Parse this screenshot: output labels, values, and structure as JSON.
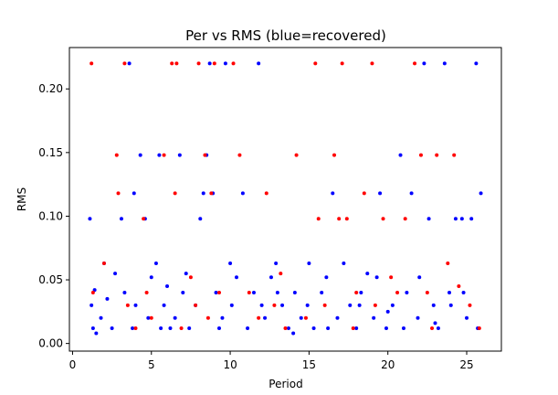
{
  "chart_data": {
    "type": "scatter",
    "title": "Per vs RMS (blue=recovered)",
    "xlabel": "Period",
    "ylabel": "RMS",
    "xlim": [
      -0.2,
      27.2
    ],
    "ylim": [
      -0.006,
      0.2325
    ],
    "xticks": [
      0,
      5,
      10,
      15,
      20,
      25
    ],
    "yticks": [
      0.0,
      0.05,
      0.1,
      0.15,
      0.2
    ],
    "ytick_labels": [
      "0.00",
      "0.05",
      "0.10",
      "0.15",
      "0.20"
    ],
    "grid": false,
    "legend": "none",
    "colors": {
      "recovered": "#0000ff",
      "not_recovered": "#ff0000",
      "axis": "#000000"
    },
    "series": [
      {
        "color": "#0000ff",
        "points": [
          [
            1.1,
            0.098
          ],
          [
            1.2,
            0.03
          ],
          [
            1.3,
            0.012
          ],
          [
            1.5,
            0.008
          ],
          [
            1.8,
            0.02
          ],
          [
            2.2,
            0.035
          ],
          [
            2.5,
            0.012
          ],
          [
            2.7,
            0.055
          ],
          [
            3.1,
            0.098
          ],
          [
            3.3,
            0.04
          ],
          [
            3.6,
            0.22
          ],
          [
            3.9,
            0.118
          ],
          [
            4.0,
            0.03
          ],
          [
            4.3,
            0.148
          ],
          [
            4.6,
            0.098
          ],
          [
            4.8,
            0.02
          ],
          [
            5.0,
            0.052
          ],
          [
            5.3,
            0.063
          ],
          [
            5.5,
            0.148
          ],
          [
            5.8,
            0.03
          ],
          [
            6.2,
            0.012
          ],
          [
            6.5,
            0.02
          ],
          [
            6.8,
            0.148
          ],
          [
            7.0,
            0.04
          ],
          [
            7.4,
            0.012
          ],
          [
            7.8,
            0.03
          ],
          [
            8.1,
            0.098
          ],
          [
            8.3,
            0.118
          ],
          [
            8.5,
            0.148
          ],
          [
            8.7,
            0.22
          ],
          [
            8.9,
            0.118
          ],
          [
            9.1,
            0.04
          ],
          [
            9.5,
            0.02
          ],
          [
            9.7,
            0.22
          ],
          [
            10.1,
            0.03
          ],
          [
            10.4,
            0.052
          ],
          [
            10.8,
            0.118
          ],
          [
            11.1,
            0.012
          ],
          [
            11.5,
            0.04
          ],
          [
            11.8,
            0.22
          ],
          [
            12.2,
            0.02
          ],
          [
            12.6,
            0.052
          ],
          [
            12.9,
            0.063
          ],
          [
            13.3,
            0.03
          ],
          [
            13.7,
            0.012
          ],
          [
            14.1,
            0.04
          ],
          [
            14.5,
            0.02
          ],
          [
            14.9,
            0.03
          ],
          [
            15.3,
            0.012
          ],
          [
            15.8,
            0.04
          ],
          [
            16.1,
            0.052
          ],
          [
            16.5,
            0.118
          ],
          [
            16.8,
            0.02
          ],
          [
            17.2,
            0.063
          ],
          [
            17.6,
            0.03
          ],
          [
            18.0,
            0.012
          ],
          [
            18.3,
            0.04
          ],
          [
            18.7,
            0.055
          ],
          [
            19.1,
            0.02
          ],
          [
            19.5,
            0.118
          ],
          [
            19.9,
            0.012
          ],
          [
            20.3,
            0.03
          ],
          [
            20.8,
            0.148
          ],
          [
            21.2,
            0.04
          ],
          [
            21.5,
            0.118
          ],
          [
            21.9,
            0.02
          ],
          [
            22.3,
            0.22
          ],
          [
            22.6,
            0.098
          ],
          [
            22.9,
            0.03
          ],
          [
            23.2,
            0.012
          ],
          [
            23.6,
            0.22
          ],
          [
            23.9,
            0.04
          ],
          [
            24.3,
            0.098
          ],
          [
            24.7,
            0.098
          ],
          [
            25.0,
            0.02
          ],
          [
            25.3,
            0.098
          ],
          [
            25.6,
            0.22
          ],
          [
            25.9,
            0.118
          ],
          [
            25.7,
            0.012
          ],
          [
            24.0,
            0.03
          ],
          [
            21.0,
            0.012
          ],
          [
            19.3,
            0.052
          ],
          [
            16.2,
            0.012
          ],
          [
            13.0,
            0.04
          ],
          [
            10.0,
            0.063
          ],
          [
            7.2,
            0.055
          ],
          [
            3.8,
            0.012
          ],
          [
            2.0,
            0.063
          ],
          [
            1.4,
            0.042
          ],
          [
            5.6,
            0.012
          ],
          [
            9.3,
            0.012
          ],
          [
            12.0,
            0.03
          ],
          [
            15.0,
            0.063
          ],
          [
            18.2,
            0.03
          ],
          [
            22.0,
            0.052
          ],
          [
            24.8,
            0.04
          ],
          [
            6.0,
            0.045
          ],
          [
            14.0,
            0.008
          ],
          [
            20.0,
            0.025
          ],
          [
            23.0,
            0.016
          ]
        ]
      },
      {
        "color": "#ff0000",
        "points": [
          [
            1.2,
            0.22
          ],
          [
            1.3,
            0.04
          ],
          [
            2.0,
            0.063
          ],
          [
            2.8,
            0.148
          ],
          [
            2.9,
            0.118
          ],
          [
            3.3,
            0.22
          ],
          [
            3.5,
            0.03
          ],
          [
            4.5,
            0.098
          ],
          [
            4.7,
            0.04
          ],
          [
            5.0,
            0.02
          ],
          [
            5.8,
            0.148
          ],
          [
            6.3,
            0.22
          ],
          [
            6.5,
            0.118
          ],
          [
            6.6,
            0.22
          ],
          [
            7.5,
            0.052
          ],
          [
            8.0,
            0.22
          ],
          [
            8.4,
            0.148
          ],
          [
            8.6,
            0.02
          ],
          [
            8.8,
            0.118
          ],
          [
            9.0,
            0.22
          ],
          [
            9.3,
            0.04
          ],
          [
            10.2,
            0.22
          ],
          [
            10.6,
            0.148
          ],
          [
            11.2,
            0.04
          ],
          [
            12.3,
            0.118
          ],
          [
            12.8,
            0.03
          ],
          [
            13.5,
            0.012
          ],
          [
            14.2,
            0.148
          ],
          [
            15.4,
            0.22
          ],
          [
            15.6,
            0.098
          ],
          [
            16.0,
            0.03
          ],
          [
            16.6,
            0.148
          ],
          [
            16.9,
            0.098
          ],
          [
            17.1,
            0.22
          ],
          [
            17.4,
            0.098
          ],
          [
            18.0,
            0.04
          ],
          [
            18.5,
            0.118
          ],
          [
            19.0,
            0.22
          ],
          [
            19.7,
            0.098
          ],
          [
            20.2,
            0.052
          ],
          [
            21.1,
            0.098
          ],
          [
            21.7,
            0.22
          ],
          [
            22.1,
            0.148
          ],
          [
            22.5,
            0.04
          ],
          [
            23.1,
            0.148
          ],
          [
            23.8,
            0.063
          ],
          [
            24.2,
            0.148
          ],
          [
            25.2,
            0.03
          ],
          [
            25.8,
            0.012
          ],
          [
            17.8,
            0.012
          ],
          [
            11.8,
            0.02
          ],
          [
            7.8,
            0.03
          ],
          [
            4.0,
            0.012
          ],
          [
            20.6,
            0.04
          ],
          [
            14.8,
            0.02
          ],
          [
            24.5,
            0.045
          ],
          [
            6.9,
            0.012
          ],
          [
            19.2,
            0.03
          ],
          [
            13.2,
            0.055
          ],
          [
            22.8,
            0.012
          ]
        ]
      }
    ]
  }
}
